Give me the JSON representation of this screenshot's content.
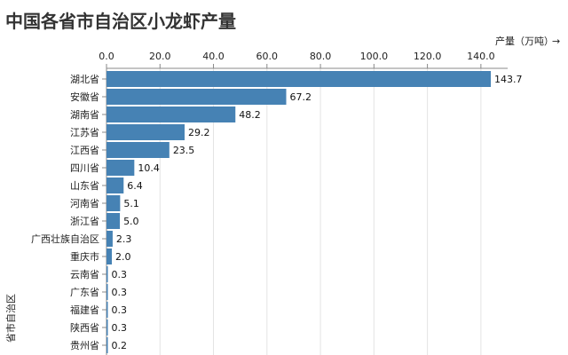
{
  "title": "中国各省市自治区小龙虾产量",
  "colors": {
    "bar": "#4682b4",
    "grid": "#e4e4e4",
    "axis": "#888888"
  },
  "chart_data": {
    "type": "bar",
    "orientation": "horizontal",
    "title": "中国各省市自治区小龙虾产量",
    "xlabel": "产量（万吨）",
    "xlabel_arrow": "→",
    "ylabel": "省市自治区",
    "xlim": [
      0,
      150
    ],
    "xticks": [
      "0.0",
      "20.0",
      "40.0",
      "60.0",
      "80.0",
      "100.0",
      "120.0",
      "140.0"
    ],
    "x_axis_position": "top",
    "grid": true,
    "categories": [
      "湖北省",
      "安徽省",
      "湖南省",
      "江苏省",
      "江西省",
      "四川省",
      "山东省",
      "河南省",
      "浙江省",
      "广西壮族自治区",
      "重庆市",
      "云南省",
      "广东省",
      "福建省",
      "陕西省",
      "贵州省"
    ],
    "values": [
      143.7,
      67.2,
      48.2,
      29.2,
      23.5,
      10.4,
      6.4,
      5.1,
      5.0,
      2.3,
      2.0,
      0.3,
      0.3,
      0.3,
      0.3,
      0.2
    ],
    "value_labels": [
      "143.7",
      "67.2",
      "48.2",
      "29.2",
      "23.5",
      "10.4",
      "6.4",
      "5.1",
      "5.0",
      "2.3",
      "2.0",
      "0.3",
      "0.3",
      "0.3",
      "0.3",
      "0.2"
    ]
  }
}
